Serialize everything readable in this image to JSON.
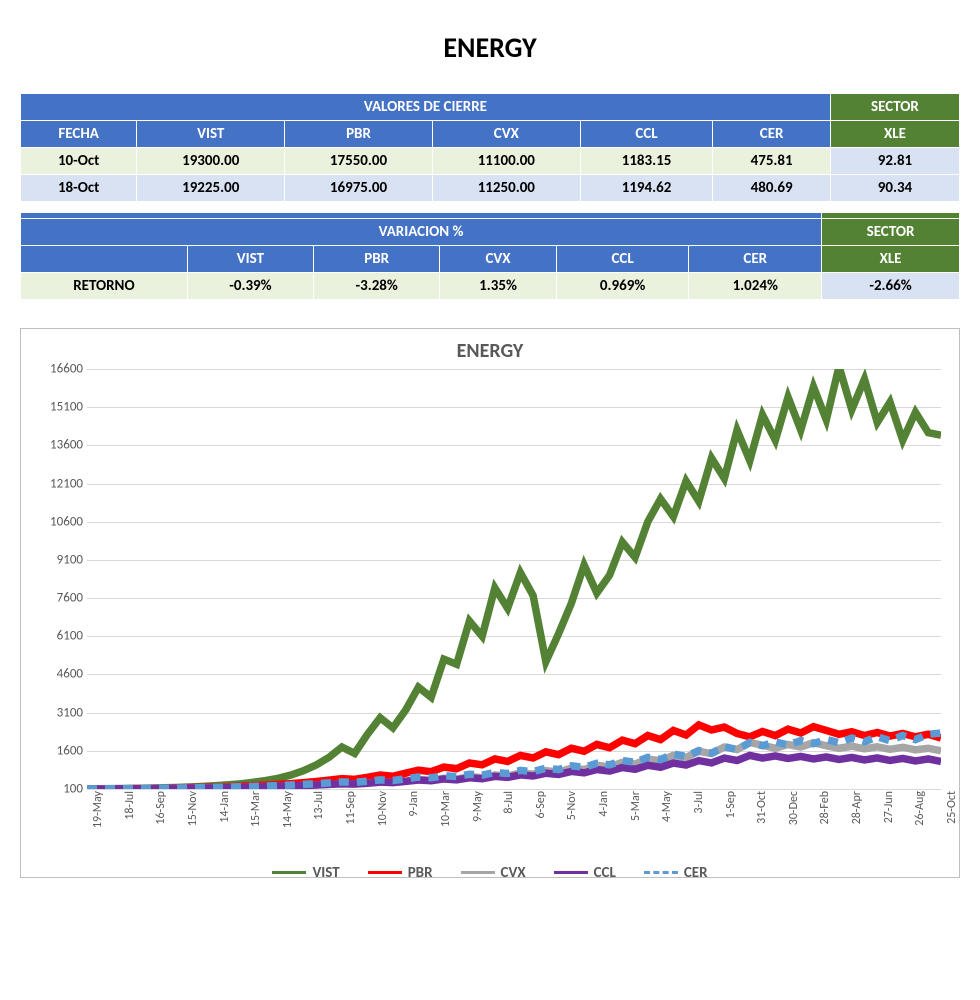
{
  "title": "ENERGY",
  "table1": {
    "merged_header": "VALORES DE CIERRE",
    "sector_header": "SECTOR",
    "columns": [
      "FECHA",
      "VIST",
      "PBR",
      "CVX",
      "CCL",
      "CER"
    ],
    "sector_col": "XLE",
    "rows": [
      {
        "cells": [
          "10-Oct",
          "19300.00",
          "17550.00",
          "11100.00",
          "1183.15",
          "475.81"
        ],
        "sector": "92.81"
      },
      {
        "cells": [
          "18-Oct",
          "19225.00",
          "16975.00",
          "11250.00",
          "1194.62",
          "480.69"
        ],
        "sector": "90.34"
      }
    ]
  },
  "table2": {
    "merged_header": "VARIACION %",
    "sector_header": "SECTOR",
    "columns": [
      "",
      "VIST",
      "PBR",
      "CVX",
      "CCL",
      "CER"
    ],
    "sector_col": "XLE",
    "rows": [
      {
        "cells": [
          "RETORNO",
          "-0.39%",
          "-3.28%",
          "1.35%",
          "0.969%",
          "1.024%"
        ],
        "sector": "-2.66%"
      }
    ]
  },
  "chart": {
    "type": "line",
    "title": "ENERGY",
    "background_color": "#ffffff",
    "border_color": "#bfbfbf",
    "grid_color": "#d9d9d9",
    "text_color": "#595959",
    "title_fontsize": 20,
    "axis_fontsize": 13,
    "x_label_fontsize": 12,
    "legend_fontsize": 15,
    "line_width": 2.5,
    "ylim": [
      100,
      16600
    ],
    "y_ticks": [
      100,
      1600,
      3100,
      4600,
      6100,
      7600,
      9100,
      10600,
      12100,
      13600,
      15100,
      16600
    ],
    "x_labels": [
      "19-May",
      "18-Jul",
      "16-Sep",
      "15-Nov",
      "14-Jan",
      "15-Mar",
      "14-May",
      "13-Jul",
      "11-Sep",
      "10-Nov",
      "9-Jan",
      "10-Mar",
      "9-May",
      "8-Jul",
      "6-Sep",
      "5-Nov",
      "4-Jan",
      "5-Mar",
      "4-May",
      "3-Jul",
      "1-Sep",
      "31-Oct",
      "30-Dec",
      "28-Feb",
      "28-Apr",
      "27-Jun",
      "26-Aug",
      "25-Oct"
    ],
    "series": [
      {
        "name": "VIST",
        "color": "#548235",
        "dash": "solid",
        "values": [
          100,
          110,
          115,
          120,
          130,
          140,
          150,
          160,
          180,
          200,
          230,
          260,
          300,
          360,
          430,
          520,
          650,
          820,
          1050,
          1350,
          1750,
          1500,
          2250,
          2900,
          2500,
          3200,
          4100,
          3700,
          5200,
          5000,
          6700,
          6100,
          8000,
          7200,
          8600,
          7700,
          5100,
          6200,
          7400,
          8900,
          7800,
          8500,
          9800,
          9200,
          10600,
          11500,
          10800,
          12200,
          11400,
          13100,
          12300,
          14200,
          13000,
          14800,
          13800,
          15500,
          14200,
          15900,
          14600,
          16700,
          15000,
          16200,
          14500,
          15300,
          13800,
          14900,
          14100,
          14000
        ]
      },
      {
        "name": "PBR",
        "color": "#ff0000",
        "dash": "solid",
        "values": [
          100,
          105,
          108,
          112,
          118,
          125,
          132,
          140,
          150,
          162,
          175,
          190,
          208,
          228,
          252,
          280,
          312,
          350,
          395,
          448,
          510,
          480,
          560,
          650,
          600,
          720,
          840,
          780,
          960,
          900,
          1120,
          1050,
          1280,
          1180,
          1420,
          1320,
          1560,
          1450,
          1700,
          1580,
          1850,
          1720,
          2020,
          1880,
          2200,
          2040,
          2400,
          2220,
          2620,
          2420,
          2530,
          2280,
          2150,
          2360,
          2200,
          2450,
          2300,
          2550,
          2400,
          2250,
          2350,
          2200,
          2320,
          2180,
          2280,
          2150,
          2250,
          2100
        ]
      },
      {
        "name": "CVX",
        "color": "#a6a6a6",
        "dash": "solid",
        "values": [
          100,
          103,
          106,
          110,
          114,
          119,
          124,
          130,
          136,
          143,
          151,
          160,
          170,
          181,
          193,
          207,
          222,
          239,
          258,
          280,
          305,
          290,
          330,
          376,
          355,
          410,
          470,
          440,
          520,
          490,
          580,
          545,
          650,
          610,
          730,
          685,
          820,
          770,
          920,
          865,
          1030,
          970,
          1150,
          1080,
          1280,
          1205,
          1420,
          1340,
          1580,
          1490,
          1750,
          1650,
          1930,
          1820,
          1700,
          1850,
          1750,
          1920,
          1800,
          1700,
          1780,
          1680,
          1760,
          1660,
          1740,
          1640,
          1700,
          1600
        ]
      },
      {
        "name": "CCL",
        "color": "#7030a0",
        "dash": "solid",
        "values": [
          100,
          102,
          105,
          108,
          112,
          116,
          121,
          126,
          132,
          139,
          147,
          156,
          166,
          177,
          190,
          204,
          220,
          238,
          258,
          281,
          307,
          295,
          328,
          370,
          350,
          400,
          455,
          425,
          495,
          460,
          540,
          505,
          595,
          555,
          655,
          610,
          720,
          670,
          790,
          735,
          865,
          805,
          945,
          875,
          1030,
          955,
          1120,
          1040,
          1215,
          1125,
          1315,
          1220,
          1420,
          1315,
          1400,
          1300,
          1380,
          1280,
          1360,
          1260,
          1340,
          1240,
          1320,
          1220,
          1300,
          1200,
          1280,
          1180
        ]
      },
      {
        "name": "CER",
        "color": "#5b9bd5",
        "dash": "dashed",
        "values": [
          100,
          104,
          108,
          113,
          118,
          124,
          130,
          137,
          145,
          154,
          164,
          175,
          187,
          201,
          217,
          235,
          256,
          280,
          308,
          340,
          377,
          360,
          405,
          460,
          435,
          500,
          570,
          540,
          620,
          590,
          680,
          645,
          750,
          710,
          830,
          785,
          915,
          865,
          1010,
          955,
          1110,
          1050,
          1220,
          1150,
          1340,
          1260,
          1470,
          1380,
          1610,
          1510,
          1760,
          1650,
          1920,
          1800,
          1950,
          1830,
          2000,
          1880,
          2050,
          1920,
          2100,
          1960,
          2150,
          2000,
          2200,
          2040,
          2250,
          2300
        ]
      }
    ]
  },
  "colors": {
    "header_blue": "#4472c4",
    "header_green": "#548235",
    "row_green": "#eaf1dd",
    "row_blue": "#d9e2f3"
  }
}
